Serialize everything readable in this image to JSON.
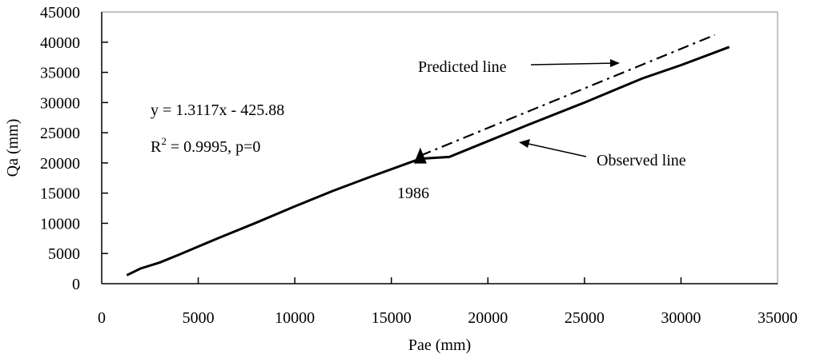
{
  "chart_data": {
    "type": "line",
    "title": "",
    "xlabel": "Pae (mm)",
    "ylabel": "Qa (mm)",
    "xlim": [
      0,
      35000
    ],
    "ylim": [
      0,
      45000
    ],
    "xticks": [
      "0",
      "5000",
      "10000",
      "15000",
      "20000",
      "25000",
      "30000",
      "35000"
    ],
    "yticks": [
      "0",
      "5000",
      "10000",
      "15000",
      "20000",
      "25000",
      "30000",
      "35000",
      "40000",
      "45000"
    ],
    "grid": false,
    "series": [
      {
        "name": "Observed line",
        "style": "solid",
        "color": "#000000",
        "x": [
          1300,
          2000,
          3000,
          4000,
          6000,
          8000,
          10000,
          12000,
          14000,
          16500,
          18000,
          20000,
          22000,
          25000,
          28000,
          30000,
          32500
        ],
        "y": [
          1400,
          2500,
          3500,
          4800,
          7500,
          10100,
          12800,
          15400,
          17800,
          20700,
          21000,
          23600,
          26200,
          30000,
          34000,
          36200,
          39200
        ]
      },
      {
        "name": "Predicted line",
        "style": "dash-dot",
        "color": "#000000",
        "x": [
          16500,
          31750
        ],
        "y": [
          21200,
          41200
        ]
      }
    ],
    "marker": {
      "label": "1986",
      "x": 16500,
      "y": 20700,
      "shape": "triangle"
    },
    "annotations": {
      "equation": "y = 1.3117x - 425.88",
      "r2_prefix": "R",
      "r2_sup": "2",
      "r2_rest": " = 0.9995,  p=0",
      "predicted_label": "Predicted line",
      "observed_label": "Observed line"
    }
  }
}
